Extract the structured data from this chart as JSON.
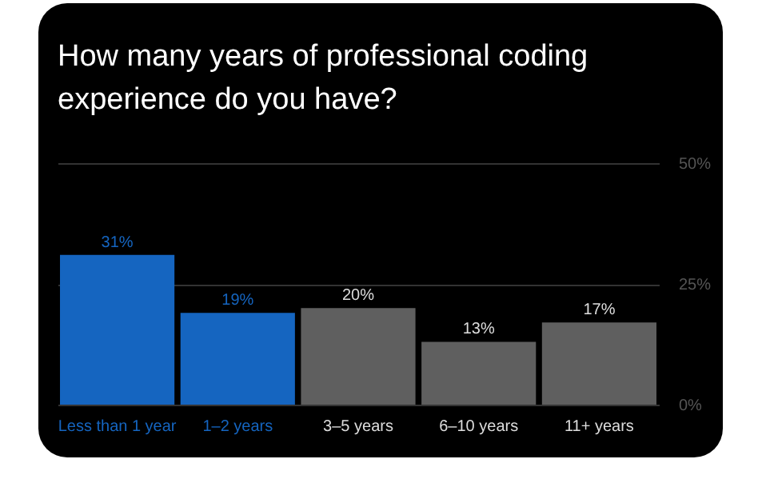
{
  "chart_data": {
    "type": "bar",
    "title": "How many years of professional coding experience do you have?",
    "categories": [
      "Less than 1 year",
      "1–2 years",
      "3–5 years",
      "6–10 years",
      "11+ years"
    ],
    "values": [
      31,
      19,
      20,
      13,
      17
    ],
    "colors": [
      "#1565c0",
      "#1565c0",
      "#5f5f5f",
      "#5f5f5f",
      "#5f5f5f"
    ],
    "value_labels": [
      "31%",
      "19%",
      "20%",
      "13%",
      "17%"
    ],
    "ylim": [
      0,
      50
    ],
    "yticks": [
      {
        "value": 0,
        "label": "0%"
      },
      {
        "value": 25,
        "label": "25%"
      },
      {
        "value": 50,
        "label": "50%"
      }
    ],
    "grid": "y"
  }
}
